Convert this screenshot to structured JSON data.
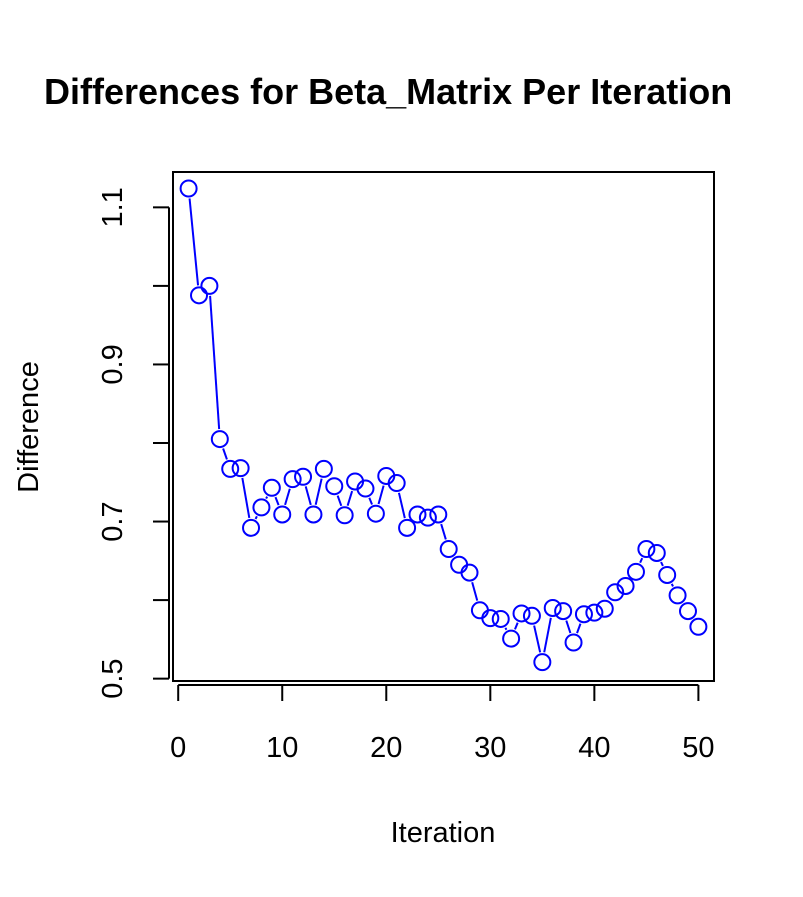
{
  "chart_data": {
    "type": "line",
    "title": "Differences for Beta_Matrix Per Iteration",
    "xlabel": "Iteration",
    "ylabel": "Difference",
    "xlim": [
      -0.5,
      51.5
    ],
    "ylim": [
      0.497,
      1.145
    ],
    "xticks": [
      0,
      10,
      20,
      30,
      40,
      50
    ],
    "xtick_labels": [
      "0",
      "10",
      "20",
      "30",
      "40",
      "50"
    ],
    "yticks": [
      0.5,
      0.6,
      0.7,
      0.8,
      0.9,
      1.0,
      1.1
    ],
    "ytick_labels": [
      "0.5",
      "",
      "0.7",
      "",
      "0.9",
      "",
      "1.1"
    ],
    "grid": false,
    "line_style": "both-points-and-lines",
    "color": "#0000ff",
    "x": [
      1,
      2,
      3,
      4,
      5,
      6,
      7,
      8,
      9,
      10,
      11,
      12,
      13,
      14,
      15,
      16,
      17,
      18,
      19,
      20,
      21,
      22,
      23,
      24,
      25,
      26,
      27,
      28,
      29,
      30,
      31,
      32,
      33,
      34,
      35,
      36,
      37,
      38,
      39,
      40,
      41,
      42,
      43,
      44,
      45,
      46,
      47,
      48,
      49,
      50
    ],
    "y": [
      1.124,
      0.988,
      1.0,
      0.805,
      0.767,
      0.768,
      0.692,
      0.718,
      0.743,
      0.709,
      0.754,
      0.757,
      0.709,
      0.767,
      0.745,
      0.708,
      0.751,
      0.742,
      0.71,
      0.758,
      0.749,
      0.692,
      0.709,
      0.705,
      0.709,
      0.665,
      0.645,
      0.635,
      0.587,
      0.577,
      0.576,
      0.551,
      0.583,
      0.58,
      0.521,
      0.59,
      0.586,
      0.546,
      0.582,
      0.584,
      0.589,
      0.61,
      0.618,
      0.636,
      0.665,
      0.66,
      0.632,
      0.606,
      0.586,
      0.566
    ]
  }
}
